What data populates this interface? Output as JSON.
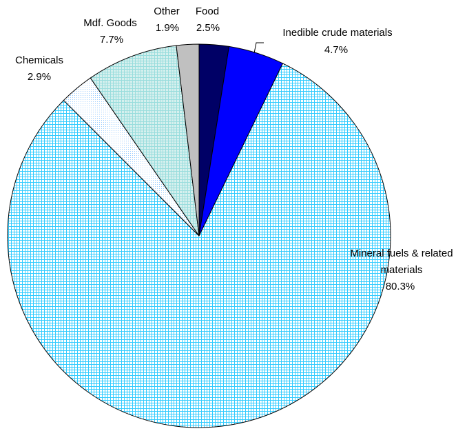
{
  "chart_data": {
    "type": "pie",
    "title": "",
    "start_angle_deg": 0,
    "direction": "clockwise",
    "slices": [
      {
        "name": "Food",
        "value": 2.5,
        "label": "Food",
        "pct_label": "2.5%",
        "color": "#000066",
        "pattern": "solid"
      },
      {
        "name": "Inedible crude materials",
        "value": 4.7,
        "label": "Inedible crude materials",
        "pct_label": "4.7%",
        "color": "#0000ff",
        "pattern": "solid"
      },
      {
        "name": "Mineral fuels & related materials",
        "value": 80.3,
        "label_lines": [
          "Mineral fuels & related",
          "materials"
        ],
        "pct_label": "80.3%",
        "color": "#33ccff",
        "pattern": "grid"
      },
      {
        "name": "Chemicals",
        "value": 2.9,
        "label": "Chemicals",
        "pct_label": "2.9%",
        "color": "#cceeff",
        "pattern": "dots"
      },
      {
        "name": "Mdf. Goods",
        "value": 7.7,
        "label": "Mdf. Goods",
        "pct_label": "7.7%",
        "color": "#99dddd",
        "pattern": "grid-light"
      },
      {
        "name": "Other",
        "value": 1.9,
        "label": "Other",
        "pct_label": "1.9%",
        "color": "#c0c0c0",
        "pattern": "solid"
      }
    ]
  }
}
